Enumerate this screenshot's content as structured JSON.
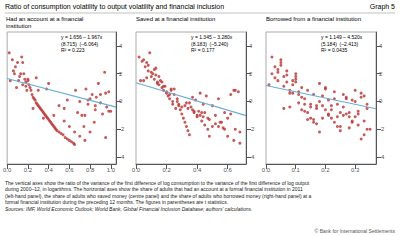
{
  "title": "Ratio of consumption volatility to output volatility and financial inclusion",
  "graph_label": "Graph 5",
  "footnotes": [
    "The vertical axes show the ratio of the variance of the first difference of log consumption to the variance of the first difference of log output",
    "during 2000–12, in logarithms. The horizontal axes show the share of adults that had an account at a formal financial institution in 2011",
    "(left-hand panel), the share of adults who saved money (centre panel) and the share of adults who borrowed money (right-hand panel) at a",
    "formal financial institution during the preceding 12 months. The figures in parentheses are t statistics."
  ],
  "sources": "Sources: IMF, World Economic Outlook; World Bank, Global Financial Inclusion Database; authors' calculations.",
  "copyright": "© Bank for International Settlements",
  "chart_data": [
    {
      "type": "scatter",
      "title": "Had an account at a financial\ninstitution",
      "annotations": [
        "y = 1.656 – 1.967x\n(8.715)  (–6.064)\nR² = 0.223"
      ],
      "xlim": [
        0.0,
        1.05
      ],
      "xticks": [
        {
          "value": 0.0,
          "label": "0.0"
        },
        0.2,
        0.4,
        0.6,
        0.8,
        {
          "value": 1.0,
          "label": "1.0"
        }
      ],
      "ylim": [
        -4.5,
        5.0
      ],
      "yticks": [
        -4,
        -2,
        0,
        2,
        4
      ],
      "grid": false,
      "series": [
        {
          "type": "scatter",
          "color": "#b83232",
          "x": [
            0.02,
            0.05,
            0.06,
            0.08,
            0.1,
            0.11,
            0.12,
            0.13,
            0.14,
            0.15,
            0.16,
            0.17,
            0.18,
            0.19,
            0.2,
            0.21,
            0.22,
            0.23,
            0.24,
            0.25,
            0.26,
            0.27,
            0.28,
            0.29,
            0.3,
            0.31,
            0.32,
            0.33,
            0.34,
            0.35,
            0.36,
            0.37,
            0.38,
            0.39,
            0.4,
            0.41,
            0.42,
            0.43,
            0.44,
            0.45,
            0.46,
            0.47,
            0.48,
            0.5,
            0.52,
            0.54,
            0.55,
            0.56,
            0.58,
            0.6,
            0.62,
            0.64,
            0.65,
            0.66,
            0.68,
            0.7,
            0.72,
            0.74,
            0.75,
            0.76,
            0.78,
            0.8,
            0.82,
            0.84,
            0.85,
            0.86,
            0.88,
            0.9,
            0.92,
            0.94,
            0.95,
            0.96,
            0.98,
            1.0,
            0.03,
            0.07,
            0.09,
            0.15,
            0.2,
            0.25,
            0.3,
            0.35,
            0.4,
            0.45,
            0.5,
            0.55,
            0.6,
            0.65,
            0.7,
            0.75,
            0.8,
            0.85,
            0.9,
            0.95,
            0.18,
            0.38,
            0.58,
            0.78,
            0.98,
            0.28
          ],
          "values": [
            3.5,
            3.0,
            2.2,
            2.5,
            2.8,
            1.5,
            1.8,
            2.0,
            3.2,
            1.2,
            2.0,
            1.6,
            1.4,
            0.8,
            1.5,
            1.2,
            1.0,
            0.8,
            0.5,
            0.3,
            0.2,
            0.1,
            -0.1,
            -0.2,
            -0.3,
            -0.4,
            -0.5,
            -0.6,
            -0.7,
            -0.8,
            -0.9,
            -1.0,
            -1.1,
            -1.2,
            -1.3,
            -1.4,
            -1.5,
            -1.6,
            -1.7,
            -1.8,
            -1.9,
            -2.0,
            -2.1,
            -2.2,
            -2.3,
            -2.4,
            -0.5,
            -2.6,
            -2.7,
            -2.8,
            -2.9,
            -3.0,
            -3.1,
            0.8,
            -0.8,
            0.0,
            -1.0,
            -1.8,
            -1.0,
            0.9,
            0.1,
            -2.2,
            0.5,
            -1.5,
            -0.3,
            0.3,
            1.3,
            -0.1,
            -0.9,
            2.1,
            0.6,
            -0.4,
            0.7,
            -0.7,
            1.5,
            2.0,
            1.0,
            2.8,
            1.6,
            -0.5,
            0.8,
            -1.2,
            1.3,
            -1.0,
            -0.3,
            -1.4,
            -1.8,
            -2.2,
            -2.5,
            -2.8,
            0.2,
            -0.6,
            0.5,
            -2.6,
            1.1,
            0.9,
            0.1,
            -0.2,
            -0.7,
            1.7
          ]
        },
        {
          "type": "line",
          "color": "#6aaed6",
          "x": [
            0.0,
            1.05
          ],
          "values": [
            1.656,
            -0.40935
          ]
        }
      ]
    },
    {
      "type": "scatter",
      "title": "Saved at a financial institution",
      "annotations": [
        "y = 1.345 – 3.280x\n(8.183)  (–5.240)\nR² = 0.177"
      ],
      "xlim": [
        0.0,
        0.72
      ],
      "xticks": [
        {
          "value": 0.0,
          "label": "0.0"
        },
        0.2,
        0.4,
        0.6
      ],
      "ylim": [
        -4.5,
        5.0
      ],
      "yticks": [
        -4,
        -2,
        0,
        2,
        4
      ],
      "grid": false,
      "series": [
        {
          "type": "scatter",
          "color": "#b83232",
          "x": [
            0.02,
            0.03,
            0.05,
            0.06,
            0.07,
            0.08,
            0.09,
            0.1,
            0.11,
            0.12,
            0.13,
            0.14,
            0.15,
            0.16,
            0.17,
            0.18,
            0.19,
            0.2,
            0.21,
            0.22,
            0.23,
            0.24,
            0.25,
            0.26,
            0.27,
            0.28,
            0.29,
            0.3,
            0.31,
            0.32,
            0.33,
            0.34,
            0.35,
            0.36,
            0.37,
            0.38,
            0.39,
            0.4,
            0.41,
            0.42,
            0.43,
            0.44,
            0.45,
            0.46,
            0.47,
            0.48,
            0.5,
            0.52,
            0.54,
            0.56,
            0.58,
            0.6,
            0.62,
            0.64,
            0.65,
            0.68,
            0.05,
            0.1,
            0.15,
            0.2,
            0.25,
            0.3,
            0.35,
            0.4,
            0.45,
            0.5,
            0.55,
            0.6,
            0.65,
            0.08,
            0.18,
            0.28,
            0.38,
            0.48,
            0.58,
            0.68,
            0.04,
            0.14,
            0.24,
            0.34,
            0.44,
            0.54,
            0.64,
            0.12,
            0.22,
            0.32,
            0.42,
            0.52,
            0.62,
            0.07,
            0.17,
            0.27,
            0.37,
            0.47,
            0.57,
            0.67,
            0.13,
            0.23,
            0.33,
            0.43
          ],
          "values": [
            3.2,
            1.5,
            3.0,
            2.5,
            2.8,
            2.2,
            3.5,
            1.8,
            2.0,
            1.6,
            2.4,
            1.4,
            1.2,
            1.5,
            1.0,
            0.8,
            1.1,
            0.6,
            0.4,
            0.2,
            0.8,
            -0.2,
            0.5,
            -0.5,
            0.0,
            -0.3,
            -0.6,
            -0.9,
            -1.2,
            -1.5,
            -1.8,
            -2.1,
            -2.4,
            -0.4,
            0.3,
            -0.8,
            0.1,
            -1.1,
            -0.7,
            0.6,
            -1.4,
            -0.2,
            -1.7,
            0.4,
            -2.0,
            -2.5,
            -0.3,
            -1.0,
            0.2,
            -1.5,
            -0.8,
            -1.2,
            0.5,
            -2.8,
            -2.0,
            -3.0,
            1.5,
            2.1,
            1.8,
            0.7,
            0.9,
            -0.4,
            -0.1,
            -1.0,
            -0.8,
            -1.8,
            -1.5,
            -2.5,
            0.8,
            2.6,
            1.1,
            -0.2,
            -0.7,
            -1.3,
            -2.0,
            -2.2,
            2.9,
            1.3,
            0.0,
            -0.5,
            -1.1,
            -1.8,
            0.8,
            2.3,
            0.5,
            -0.3,
            -1.0,
            -1.6,
            -0.9,
            1.7,
            1.4,
            0.2,
            -0.6,
            -1.2,
            -1.9,
            0.7,
            1.9,
            0.9,
            -0.1,
            -0.8
          ]
        },
        {
          "type": "line",
          "color": "#6aaed6",
          "x": [
            0.0,
            0.72
          ],
          "values": [
            1.345,
            -1.0166
          ]
        }
      ]
    },
    {
      "type": "scatter",
      "title": "Borrowed from a financial institution",
      "annotations": [
        "y = 1.149 – 4.520x\n(5.184)  (–2.413)\nR² = 0.0435"
      ],
      "xlim": [
        0.0,
        0.37
      ],
      "xticks": [
        {
          "value": 0.0,
          "label": "0.0"
        },
        0.1,
        0.2,
        0.3
      ],
      "ylim": [
        -4.5,
        5.0
      ],
      "yticks": [
        -4,
        -2,
        0,
        2,
        4
      ],
      "grid": false,
      "series": [
        {
          "type": "scatter",
          "color": "#b83232",
          "x": [
            0.01,
            0.02,
            0.03,
            0.04,
            0.05,
            0.06,
            0.07,
            0.08,
            0.09,
            0.1,
            0.11,
            0.12,
            0.13,
            0.14,
            0.15,
            0.16,
            0.17,
            0.18,
            0.19,
            0.2,
            0.21,
            0.22,
            0.23,
            0.24,
            0.25,
            0.26,
            0.27,
            0.28,
            0.29,
            0.3,
            0.31,
            0.32,
            0.33,
            0.34,
            0.35,
            0.03,
            0.05,
            0.07,
            0.09,
            0.11,
            0.13,
            0.15,
            0.17,
            0.19,
            0.21,
            0.23,
            0.25,
            0.27,
            0.29,
            0.31,
            0.33,
            0.04,
            0.06,
            0.08,
            0.1,
            0.12,
            0.14,
            0.16,
            0.18,
            0.2,
            0.22,
            0.24,
            0.26,
            0.28,
            0.3,
            0.32,
            0.34,
            0.02,
            0.06,
            0.1,
            0.14,
            0.18,
            0.22,
            0.26,
            0.3,
            0.34,
            0.05,
            0.09,
            0.13,
            0.17,
            0.21,
            0.25,
            0.29,
            0.33,
            0.07,
            0.11,
            0.15,
            0.19,
            0.23,
            0.27,
            0.31,
            0.04,
            0.08,
            0.12,
            0.16,
            0.2,
            0.24,
            0.28,
            0.32,
            0.1
          ],
          "values": [
            1.2,
            2.0,
            2.5,
            1.5,
            3.0,
            1.8,
            2.2,
            0.8,
            1.2,
            1.6,
            0.5,
            1.0,
            0.2,
            0.8,
            -0.2,
            0.5,
            -0.5,
            0.0,
            -0.3,
            -0.6,
            -0.9,
            -1.2,
            -1.5,
            -1.8,
            -2.1,
            -0.4,
            0.3,
            -0.8,
            0.1,
            -1.1,
            -0.7,
            0.6,
            -1.4,
            -0.2,
            -2.0,
            1.7,
            2.8,
            1.4,
            0.6,
            -0.1,
            -0.7,
            -1.2,
            -0.3,
            0.4,
            -1.0,
            0.7,
            -1.8,
            0.2,
            -1.5,
            -0.9,
            -2.4,
            2.3,
            1.1,
            -0.4,
            1.8,
            0.3,
            -0.8,
            -1.5,
            -2.2,
            0.9,
            -0.3,
            -1.1,
            0.5,
            -1.9,
            0.0,
            -2.7,
            -0.5,
            3.2,
            -0.5,
            2.0,
            -1.3,
            1.3,
            -0.6,
            -1.0,
            0.8,
            -2.0,
            2.6,
            1.5,
            -0.2,
            -1.6,
            0.1,
            -0.8,
            -1.4,
            0.4,
            1.9,
            0.7,
            -0.4,
            -1.2,
            0.2,
            -0.9,
            -1.7,
            2.1,
            0.6,
            -0.6,
            -1.3,
            1.0,
            -0.2,
            -1.1,
            0.3,
            1.4
          ]
        },
        {
          "type": "line",
          "color": "#6aaed6",
          "x": [
            0.0,
            0.37
          ],
          "values": [
            1.149,
            -0.5234
          ]
        }
      ]
    }
  ]
}
